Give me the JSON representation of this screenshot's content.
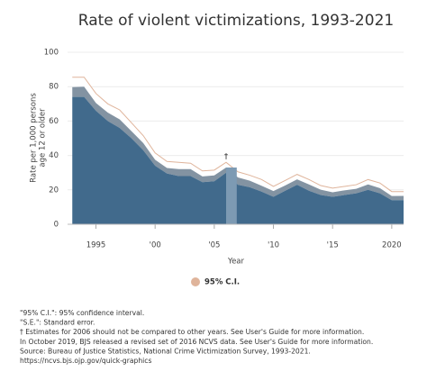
{
  "chart_data": {
    "type": "area",
    "title": "Rate of violent victimizations, 1993-2021",
    "ylabel": [
      "Rate per 1,000 persons",
      "age 12 or older"
    ],
    "xlabel": "Year",
    "x": [
      1993,
      1994,
      1995,
      1996,
      1997,
      1998,
      1999,
      2000,
      2001,
      2002,
      2003,
      2004,
      2005,
      2006,
      2007,
      2008,
      2009,
      2010,
      2011,
      2012,
      2013,
      2014,
      2015,
      2016,
      2017,
      2018,
      2019,
      2020,
      2021
    ],
    "values": [
      79.8,
      80.0,
      70.5,
      64.9,
      61.0,
      54.1,
      47.2,
      37.5,
      32.7,
      32.1,
      32.1,
      27.8,
      28.4,
      33.0,
      27.2,
      25.3,
      22.4,
      19.3,
      22.6,
      26.1,
      23.2,
      20.1,
      18.6,
      19.7,
      20.6,
      23.2,
      21.0,
      16.4,
      16.5
    ],
    "color": "#8393a2",
    "ci": {
      "name": "95% C.I.",
      "color": "#dfb49b",
      "lower": [
        74,
        74,
        66,
        60,
        56,
        50,
        43,
        34,
        29.5,
        28,
        28,
        24.5,
        25,
        30,
        23,
        21.5,
        19,
        16,
        19.5,
        23,
        19.5,
        17,
        16,
        17,
        18,
        20,
        18,
        14,
        14
      ],
      "upper": [
        85.5,
        85.5,
        76,
        70,
        66.5,
        59,
        51.5,
        41.5,
        36.5,
        36,
        35.5,
        31,
        31.5,
        36,
        30.5,
        28.5,
        26,
        22,
        25.5,
        29,
        26,
        22.5,
        21,
        22,
        23,
        26,
        24,
        19,
        19
      ]
    },
    "lower_color": "#416a8c",
    "annotations": [
      {
        "text": "†",
        "x": 2006
      }
    ],
    "xlim": [
      1992.6,
      2021
    ],
    "xticks": [
      1995,
      {
        "value": 2000,
        "label": "'00"
      },
      {
        "value": 2005,
        "label": "'05"
      },
      {
        "value": 2010,
        "label": "'10"
      },
      {
        "value": 2015,
        "label": "'15"
      },
      2020
    ],
    "ylim": [
      0,
      100
    ],
    "yticks": [
      0,
      20,
      40,
      60,
      80,
      100
    ],
    "grid": true
  },
  "footnotes": [
    "\"95% C.I.\": 95% confidence interval.",
    "\"S.E.\": Standard error.",
    "† Estimates for 2006 should not be compared to other years. See User's Guide for more information.",
    "In October 2019, BJS released a revised set of 2016 NCVS data. See User's Guide for more information.",
    "Source: Bureau of Justice Statistics, National Crime Victimization Survey, 1993-2021.",
    "https://ncvs.bjs.ojp.gov/quick-graphics"
  ]
}
